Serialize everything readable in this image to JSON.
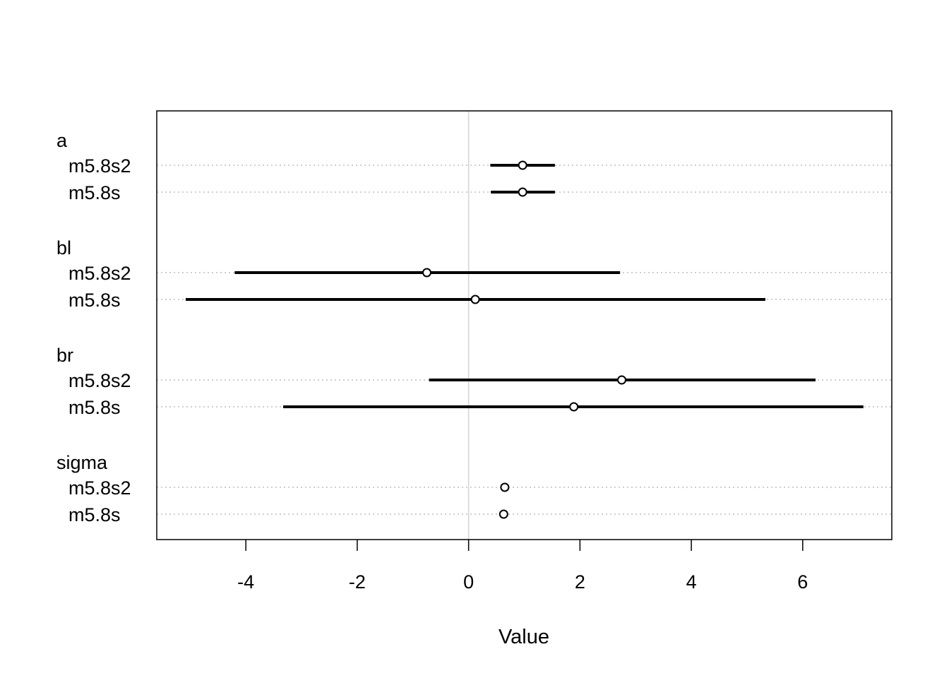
{
  "chart_data": {
    "type": "dot-interval",
    "xlabel": "Value",
    "xlim": [
      -5.6,
      7.6
    ],
    "xticks": [
      -4,
      -2,
      0,
      2,
      4,
      6
    ],
    "reference_line": 0,
    "groups": [
      {
        "label": "a",
        "rows": [
          {
            "label": "m5.8s2",
            "mean": 0.97,
            "lo": 0.39,
            "hi": 1.55
          },
          {
            "label": "m5.8s",
            "mean": 0.97,
            "lo": 0.4,
            "hi": 1.55
          }
        ]
      },
      {
        "label": "bl",
        "rows": [
          {
            "label": "m5.8s2",
            "mean": -0.75,
            "lo": -4.2,
            "hi": 2.72
          },
          {
            "label": "m5.8s",
            "mean": 0.12,
            "lo": -5.08,
            "hi": 5.33
          }
        ]
      },
      {
        "label": "br",
        "rows": [
          {
            "label": "m5.8s2",
            "mean": 2.75,
            "lo": -0.71,
            "hi": 6.23
          },
          {
            "label": "m5.8s",
            "mean": 1.89,
            "lo": -3.33,
            "hi": 7.09
          }
        ]
      },
      {
        "label": "sigma",
        "rows": [
          {
            "label": "m5.8s2",
            "mean": 0.65,
            "lo": 0.58,
            "hi": 0.72
          },
          {
            "label": "m5.8s",
            "mean": 0.63,
            "lo": 0.56,
            "hi": 0.7
          }
        ]
      }
    ],
    "grid": "dotted-horizontal",
    "colors": {
      "interval": "#000000",
      "grid": "#bebebe",
      "reference": "#d3d3d3"
    }
  }
}
